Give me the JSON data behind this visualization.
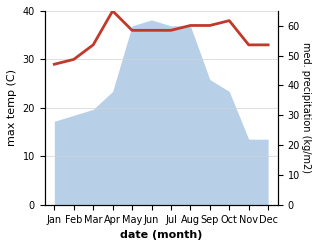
{
  "months": [
    "Jan",
    "Feb",
    "Mar",
    "Apr",
    "May",
    "Jun",
    "Jul",
    "Aug",
    "Sep",
    "Oct",
    "Nov",
    "Dec"
  ],
  "temp_left": [
    29,
    30,
    33,
    40,
    36,
    36,
    36,
    37,
    37,
    38,
    33,
    33
  ],
  "precip_right": [
    28,
    30,
    32,
    38,
    60,
    62,
    60,
    60,
    42,
    38,
    22,
    22
  ],
  "temp_color": "#c0392b",
  "precip_fill_color": "#b8cfe8",
  "ylabel_left": "max temp (C)",
  "ylabel_right": "med. precipitation (kg/m2)",
  "xlabel": "date (month)",
  "ylim_left": [
    0,
    40
  ],
  "ylim_right": [
    0,
    65
  ],
  "yticks_left": [
    0,
    10,
    20,
    30,
    40
  ],
  "yticks_right": [
    0,
    10,
    20,
    30,
    40,
    50,
    60
  ],
  "line_width": 2.0,
  "ylabel_right_rotation": 270,
  "ylabel_right_labelpad": 8,
  "tick_fontsize": 7,
  "label_fontsize": 8,
  "ylabel_right_fontsize": 7
}
